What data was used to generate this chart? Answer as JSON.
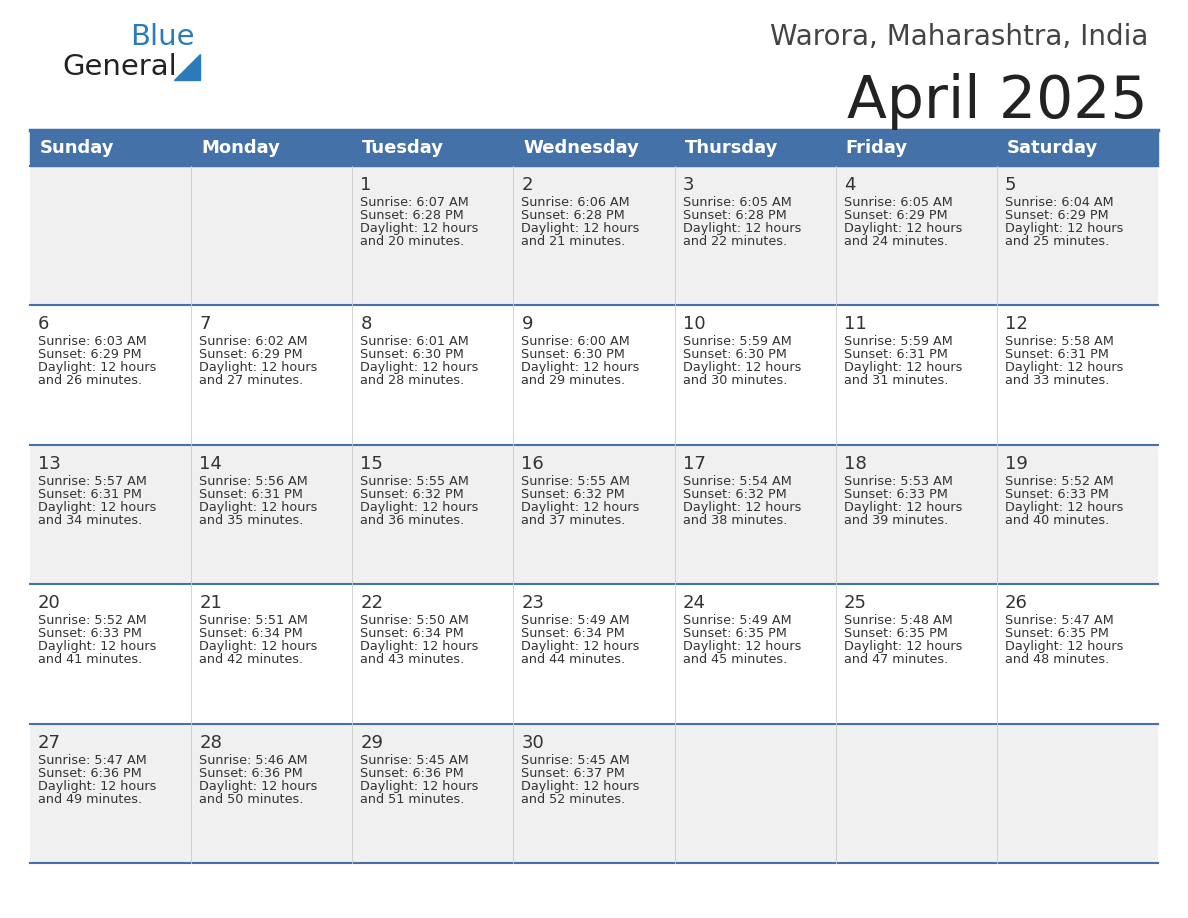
{
  "title": "April 2025",
  "subtitle": "Warora, Maharashtra, India",
  "days_of_week": [
    "Sunday",
    "Monday",
    "Tuesday",
    "Wednesday",
    "Thursday",
    "Friday",
    "Saturday"
  ],
  "header_bg_color": "#4472a8",
  "header_text_color": "#ffffff",
  "cell_bg_even": "#f0f0f0",
  "cell_bg_odd": "#ffffff",
  "cell_border_color": "#4472a8",
  "day_num_color": "#333333",
  "detail_text_color": "#333333",
  "title_color": "#222222",
  "subtitle_color": "#444444",
  "logo_general_color": "#222222",
  "logo_blue_color": "#2b7bba",
  "weeks": [
    [
      {
        "day": "",
        "sunrise": "",
        "sunset": "",
        "daylight_h": "",
        "daylight_m": ""
      },
      {
        "day": "",
        "sunrise": "",
        "sunset": "",
        "daylight_h": "",
        "daylight_m": ""
      },
      {
        "day": "1",
        "sunrise": "6:07 AM",
        "sunset": "6:28 PM",
        "daylight_h": "12",
        "daylight_m": "20"
      },
      {
        "day": "2",
        "sunrise": "6:06 AM",
        "sunset": "6:28 PM",
        "daylight_h": "12",
        "daylight_m": "21"
      },
      {
        "day": "3",
        "sunrise": "6:05 AM",
        "sunset": "6:28 PM",
        "daylight_h": "12",
        "daylight_m": "22"
      },
      {
        "day": "4",
        "sunrise": "6:05 AM",
        "sunset": "6:29 PM",
        "daylight_h": "12",
        "daylight_m": "24"
      },
      {
        "day": "5",
        "sunrise": "6:04 AM",
        "sunset": "6:29 PM",
        "daylight_h": "12",
        "daylight_m": "25"
      }
    ],
    [
      {
        "day": "6",
        "sunrise": "6:03 AM",
        "sunset": "6:29 PM",
        "daylight_h": "12",
        "daylight_m": "26"
      },
      {
        "day": "7",
        "sunrise": "6:02 AM",
        "sunset": "6:29 PM",
        "daylight_h": "12",
        "daylight_m": "27"
      },
      {
        "day": "8",
        "sunrise": "6:01 AM",
        "sunset": "6:30 PM",
        "daylight_h": "12",
        "daylight_m": "28"
      },
      {
        "day": "9",
        "sunrise": "6:00 AM",
        "sunset": "6:30 PM",
        "daylight_h": "12",
        "daylight_m": "29"
      },
      {
        "day": "10",
        "sunrise": "5:59 AM",
        "sunset": "6:30 PM",
        "daylight_h": "12",
        "daylight_m": "30"
      },
      {
        "day": "11",
        "sunrise": "5:59 AM",
        "sunset": "6:31 PM",
        "daylight_h": "12",
        "daylight_m": "31"
      },
      {
        "day": "12",
        "sunrise": "5:58 AM",
        "sunset": "6:31 PM",
        "daylight_h": "12",
        "daylight_m": "33"
      }
    ],
    [
      {
        "day": "13",
        "sunrise": "5:57 AM",
        "sunset": "6:31 PM",
        "daylight_h": "12",
        "daylight_m": "34"
      },
      {
        "day": "14",
        "sunrise": "5:56 AM",
        "sunset": "6:31 PM",
        "daylight_h": "12",
        "daylight_m": "35"
      },
      {
        "day": "15",
        "sunrise": "5:55 AM",
        "sunset": "6:32 PM",
        "daylight_h": "12",
        "daylight_m": "36"
      },
      {
        "day": "16",
        "sunrise": "5:55 AM",
        "sunset": "6:32 PM",
        "daylight_h": "12",
        "daylight_m": "37"
      },
      {
        "day": "17",
        "sunrise": "5:54 AM",
        "sunset": "6:32 PM",
        "daylight_h": "12",
        "daylight_m": "38"
      },
      {
        "day": "18",
        "sunrise": "5:53 AM",
        "sunset": "6:33 PM",
        "daylight_h": "12",
        "daylight_m": "39"
      },
      {
        "day": "19",
        "sunrise": "5:52 AM",
        "sunset": "6:33 PM",
        "daylight_h": "12",
        "daylight_m": "40"
      }
    ],
    [
      {
        "day": "20",
        "sunrise": "5:52 AM",
        "sunset": "6:33 PM",
        "daylight_h": "12",
        "daylight_m": "41"
      },
      {
        "day": "21",
        "sunrise": "5:51 AM",
        "sunset": "6:34 PM",
        "daylight_h": "12",
        "daylight_m": "42"
      },
      {
        "day": "22",
        "sunrise": "5:50 AM",
        "sunset": "6:34 PM",
        "daylight_h": "12",
        "daylight_m": "43"
      },
      {
        "day": "23",
        "sunrise": "5:49 AM",
        "sunset": "6:34 PM",
        "daylight_h": "12",
        "daylight_m": "44"
      },
      {
        "day": "24",
        "sunrise": "5:49 AM",
        "sunset": "6:35 PM",
        "daylight_h": "12",
        "daylight_m": "45"
      },
      {
        "day": "25",
        "sunrise": "5:48 AM",
        "sunset": "6:35 PM",
        "daylight_h": "12",
        "daylight_m": "47"
      },
      {
        "day": "26",
        "sunrise": "5:47 AM",
        "sunset": "6:35 PM",
        "daylight_h": "12",
        "daylight_m": "48"
      }
    ],
    [
      {
        "day": "27",
        "sunrise": "5:47 AM",
        "sunset": "6:36 PM",
        "daylight_h": "12",
        "daylight_m": "49"
      },
      {
        "day": "28",
        "sunrise": "5:46 AM",
        "sunset": "6:36 PM",
        "daylight_h": "12",
        "daylight_m": "50"
      },
      {
        "day": "29",
        "sunrise": "5:45 AM",
        "sunset": "6:36 PM",
        "daylight_h": "12",
        "daylight_m": "51"
      },
      {
        "day": "30",
        "sunrise": "5:45 AM",
        "sunset": "6:37 PM",
        "daylight_h": "12",
        "daylight_m": "52"
      },
      {
        "day": "",
        "sunrise": "",
        "sunset": "",
        "daylight_h": "",
        "daylight_m": ""
      },
      {
        "day": "",
        "sunrise": "",
        "sunset": "",
        "daylight_h": "",
        "daylight_m": ""
      },
      {
        "day": "",
        "sunrise": "",
        "sunset": "",
        "daylight_h": "",
        "daylight_m": ""
      }
    ]
  ]
}
